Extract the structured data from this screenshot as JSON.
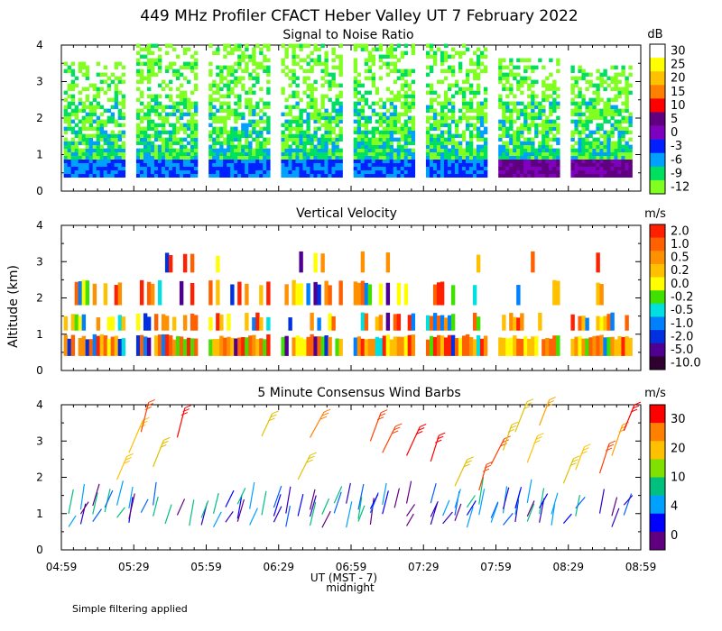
{
  "title": "449 MHz Profiler CFACT Heber Valley UT  7 February 2022",
  "ylabel": "Altitude (km)",
  "xlabel": "UT (MST - 7)",
  "xlabel_note": "midnight",
  "footnote": "Simple filtering applied",
  "chart_data": [
    {
      "type": "heatmap",
      "title": "Signal to Noise Ratio",
      "xlabel": "UT (MST - 7)",
      "ylabel": "Altitude (km)",
      "x_tick_labels": [
        "04:59",
        "05:29",
        "05:59",
        "06:29",
        "06:59",
        "07:29",
        "07:59",
        "08:29",
        "08:59"
      ],
      "y_tick_labels": [
        "0",
        "1",
        "2",
        "3",
        "4"
      ],
      "ylim": [
        0,
        4
      ],
      "colorbar": {
        "unit": "dB",
        "labels": [
          "30",
          "25",
          "20",
          "15",
          "10",
          "5",
          "0",
          "-3",
          "-6",
          "-9",
          "-12"
        ],
        "colors": [
          "#ffffff",
          "#ffff00",
          "#ffc000",
          "#ff8000",
          "#ff0000",
          "#600080",
          "#8000c0",
          "#0020ff",
          "#00a0ff",
          "#00e060",
          "#80ff20"
        ]
      },
      "blocks": [
        {
          "start": "05:00",
          "end": "05:25",
          "top_km": 3.5
        },
        {
          "start": "05:30",
          "end": "05:55",
          "top_km": 4.0
        },
        {
          "start": "06:00",
          "end": "06:25",
          "top_km": 4.0
        },
        {
          "start": "06:30",
          "end": "06:55",
          "top_km": 4.0
        },
        {
          "start": "07:00",
          "end": "07:25",
          "top_km": 4.0
        },
        {
          "start": "07:30",
          "end": "07:55",
          "top_km": 4.0
        },
        {
          "start": "08:00",
          "end": "08:25",
          "top_km": 3.6
        },
        {
          "start": "08:30",
          "end": "08:55",
          "top_km": 3.4
        }
      ]
    },
    {
      "type": "heatmap",
      "title": "Vertical Velocity",
      "xlabel": "UT (MST - 7)",
      "ylabel": "Altitude (km)",
      "x_tick_labels": [
        "04:59",
        "05:29",
        "05:59",
        "06:29",
        "06:59",
        "07:29",
        "07:59",
        "08:29",
        "08:59"
      ],
      "y_tick_labels": [
        "0",
        "1",
        "2",
        "3",
        "4"
      ],
      "ylim": [
        0,
        4
      ],
      "colorbar": {
        "unit": "m/s",
        "labels": [
          "2.0",
          "1.0",
          "0.5",
          "0.2",
          "0.0",
          "-0.2",
          "-0.5",
          "-1.0",
          "-2.0",
          "-5.0",
          "-10.0"
        ],
        "colors": [
          "#ff2000",
          "#ff6000",
          "#ff9000",
          "#ffc000",
          "#ffff00",
          "#40e000",
          "#00e0e0",
          "#0080ff",
          "#0030e0",
          "#500090",
          "#300030"
        ]
      }
    },
    {
      "type": "scatter",
      "title": "5 Minute Consensus Wind Barbs",
      "xlabel": "UT (MST - 7)",
      "ylabel": "Altitude (km)",
      "x_tick_labels": [
        "04:59",
        "05:29",
        "05:59",
        "06:29",
        "06:59",
        "07:29",
        "07:59",
        "08:29",
        "08:59"
      ],
      "y_tick_labels": [
        "0",
        "1",
        "2",
        "3",
        "4"
      ],
      "ylim": [
        0,
        4
      ],
      "colorbar": {
        "unit": "m/s",
        "labels": [
          "30",
          "20",
          "10",
          "4",
          "0"
        ],
        "colors": [
          "#ff0000",
          "#ff8000",
          "#ffc000",
          "#80e000",
          "#00c080",
          "#00a0ff",
          "#0000ff",
          "#600080"
        ]
      }
    }
  ]
}
